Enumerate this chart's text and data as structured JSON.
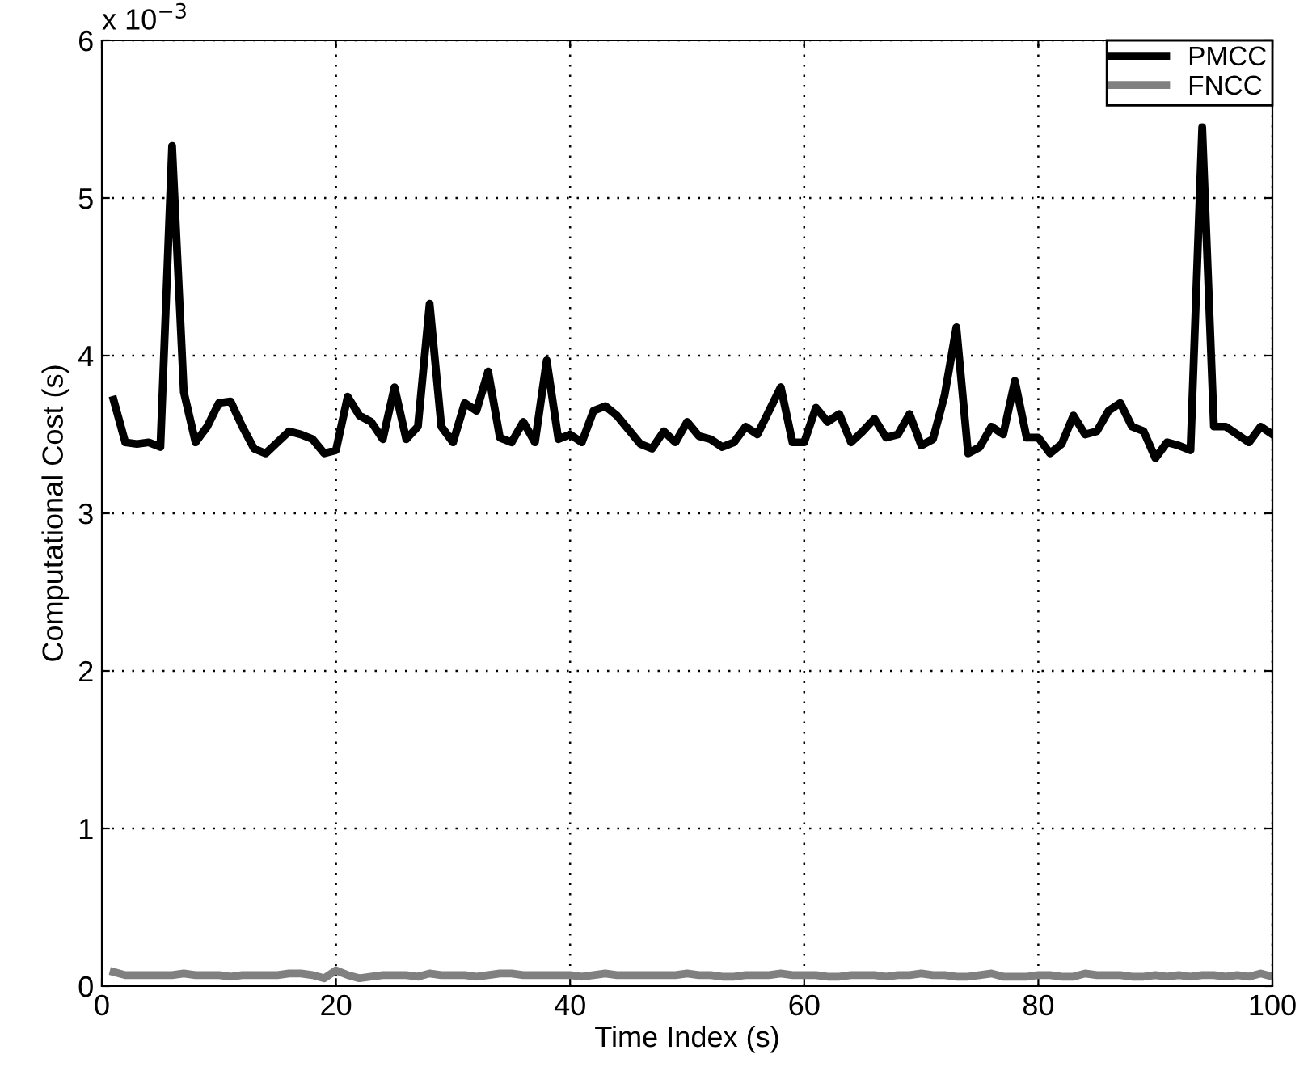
{
  "chart_data": {
    "type": "line",
    "xlabel": "Time Index (s)",
    "ylabel": "Computational Cost (s)",
    "annotations": [
      "x 10$^{−3}$"
    ],
    "x": [
      1,
      2,
      3,
      4,
      5,
      6,
      7,
      8,
      9,
      10,
      11,
      12,
      13,
      14,
      15,
      16,
      17,
      18,
      19,
      20,
      21,
      22,
      23,
      24,
      25,
      26,
      27,
      28,
      29,
      30,
      31,
      32,
      33,
      34,
      35,
      36,
      37,
      38,
      39,
      40,
      41,
      42,
      43,
      44,
      45,
      46,
      47,
      48,
      49,
      50,
      51,
      52,
      53,
      54,
      55,
      56,
      57,
      58,
      59,
      60,
      61,
      62,
      63,
      64,
      65,
      66,
      67,
      68,
      69,
      70,
      71,
      72,
      73,
      74,
      75,
      76,
      77,
      78,
      79,
      80,
      81,
      82,
      83,
      84,
      85,
      86,
      87,
      88,
      89,
      90,
      91,
      92,
      93,
      94,
      95,
      96,
      97,
      98,
      99,
      100
    ],
    "series": [
      {
        "name": "PMCC",
        "color": "#000000",
        "values": [
          3.72,
          3.45,
          3.44,
          3.45,
          3.42,
          5.33,
          3.77,
          3.45,
          3.55,
          3.7,
          3.71,
          3.55,
          3.41,
          3.38,
          3.45,
          3.52,
          3.5,
          3.47,
          3.38,
          3.4,
          3.74,
          3.62,
          3.58,
          3.47,
          3.8,
          3.47,
          3.55,
          4.33,
          3.55,
          3.45,
          3.7,
          3.65,
          3.9,
          3.48,
          3.45,
          3.58,
          3.45,
          3.97,
          3.47,
          3.5,
          3.45,
          3.65,
          3.68,
          3.62,
          3.53,
          3.44,
          3.41,
          3.52,
          3.45,
          3.58,
          3.49,
          3.47,
          3.42,
          3.45,
          3.55,
          3.5,
          3.65,
          3.8,
          3.45,
          3.45,
          3.67,
          3.58,
          3.63,
          3.45,
          3.52,
          3.6,
          3.48,
          3.5,
          3.63,
          3.43,
          3.47,
          3.75,
          4.18,
          3.38,
          3.42,
          3.55,
          3.5,
          3.84,
          3.48,
          3.48,
          3.38,
          3.44,
          3.62,
          3.5,
          3.52,
          3.65,
          3.7,
          3.55,
          3.52,
          3.35,
          3.45,
          3.43,
          3.4,
          5.45,
          3.55,
          3.55,
          3.5,
          3.45,
          3.55,
          3.5
        ]
      },
      {
        "name": "FNCC",
        "color": "#808080",
        "values": [
          0.09,
          0.07,
          0.07,
          0.07,
          0.07,
          0.07,
          0.08,
          0.07,
          0.07,
          0.07,
          0.06,
          0.07,
          0.07,
          0.07,
          0.07,
          0.08,
          0.08,
          0.07,
          0.05,
          0.1,
          0.07,
          0.05,
          0.06,
          0.07,
          0.07,
          0.07,
          0.06,
          0.08,
          0.07,
          0.07,
          0.07,
          0.06,
          0.07,
          0.08,
          0.08,
          0.07,
          0.07,
          0.07,
          0.07,
          0.07,
          0.06,
          0.07,
          0.08,
          0.07,
          0.07,
          0.07,
          0.07,
          0.07,
          0.07,
          0.08,
          0.07,
          0.07,
          0.06,
          0.06,
          0.07,
          0.07,
          0.07,
          0.08,
          0.07,
          0.07,
          0.07,
          0.06,
          0.06,
          0.07,
          0.07,
          0.07,
          0.06,
          0.07,
          0.07,
          0.08,
          0.07,
          0.07,
          0.06,
          0.06,
          0.07,
          0.08,
          0.06,
          0.06,
          0.06,
          0.07,
          0.07,
          0.06,
          0.06,
          0.08,
          0.07,
          0.07,
          0.07,
          0.06,
          0.06,
          0.07,
          0.06,
          0.07,
          0.06,
          0.07,
          0.07,
          0.06,
          0.07,
          0.06,
          0.08,
          0.06
        ]
      }
    ],
    "xlim": [
      0,
      100
    ],
    "xticks": [
      0,
      20,
      40,
      60,
      80,
      100
    ],
    "ylim": [
      0,
      6
    ],
    "yticks": [
      0,
      1,
      2,
      3,
      4,
      5,
      6
    ],
    "grid": true,
    "legend": "top right",
    "marker": "none",
    "line_style": "solid"
  }
}
